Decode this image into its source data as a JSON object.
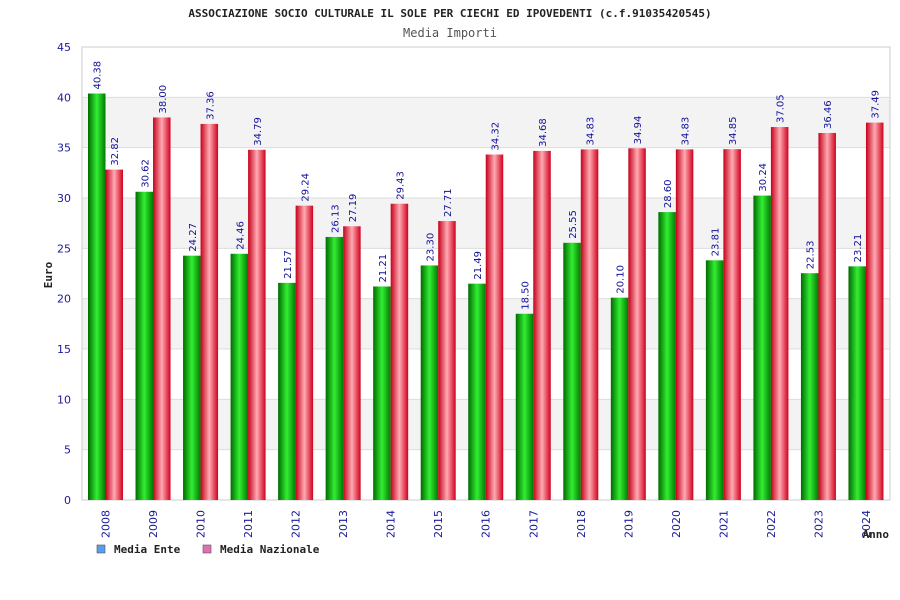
{
  "chart_data": {
    "type": "bar",
    "title": "ASSOCIAZIONE SOCIO CULTURALE IL SOLE PER CIECHI ED IPOVEDENTI (c.f.91035420545)",
    "subtitle": "Media Importi",
    "xlabel": "Anno",
    "ylabel": "Euro",
    "ylim": [
      0,
      45
    ],
    "yticks": [
      "0",
      "5",
      "10",
      "15",
      "20",
      "25",
      "30",
      "35",
      "40",
      "45"
    ],
    "categories": [
      "2008",
      "2009",
      "2010",
      "2011",
      "2012",
      "2013",
      "2014",
      "2015",
      "2016",
      "2017",
      "2018",
      "2019",
      "2020",
      "2021",
      "2022",
      "2023",
      "2024"
    ],
    "series": [
      {
        "name": "Media Ente",
        "color": "#00bb00",
        "legend_color": "#5b9bf0",
        "values": [
          40.38,
          30.62,
          24.27,
          24.46,
          21.57,
          26.13,
          21.21,
          23.3,
          21.49,
          18.5,
          25.55,
          20.1,
          28.6,
          23.81,
          30.24,
          22.53,
          23.21
        ],
        "labels": [
          "40.38",
          "30.62",
          "24.27",
          "24.46",
          "21.57",
          "26.13",
          "21.21",
          "23.30",
          "21.49",
          "18.50",
          "25.55",
          "20.10",
          "28.60",
          "23.81",
          "30.24",
          "22.53",
          "23.21"
        ]
      },
      {
        "name": "Media Nazionale",
        "color": "#ee2233",
        "legend_color": "#e070b0",
        "values": [
          32.82,
          38.0,
          37.36,
          34.79,
          29.24,
          27.19,
          29.43,
          27.71,
          34.32,
          34.68,
          34.83,
          34.94,
          34.83,
          34.85,
          37.05,
          36.46,
          37.49
        ],
        "labels": [
          "32.82",
          "38.00",
          "37.36",
          "34.79",
          "29.24",
          "27.19",
          "29.43",
          "27.71",
          "34.32",
          "34.68",
          "34.83",
          "34.94",
          "34.83",
          "34.85",
          "37.05",
          "36.46",
          "37.49"
        ]
      }
    ],
    "grid": true,
    "legend_position": "bottom-left",
    "data_labels": true
  }
}
